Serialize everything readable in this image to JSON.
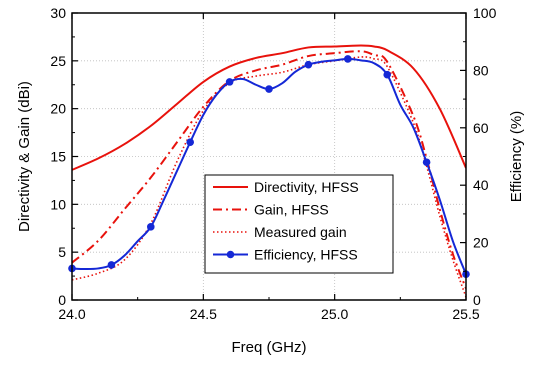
{
  "chart_data": {
    "type": "line",
    "title": "",
    "xlabel": "Freq (GHz)",
    "ylabel": "Directivity & Gain (dBi)",
    "y2label": "Efficiency (%)",
    "xlim": [
      24.0,
      25.5
    ],
    "ylim": [
      0,
      30
    ],
    "y2lim": [
      0,
      100
    ],
    "xticks": [
      "24.0",
      "24.5",
      "25.0",
      "25.5"
    ],
    "yticks": [
      "0",
      "5",
      "10",
      "15",
      "20",
      "25",
      "30"
    ],
    "y2ticks": [
      "0",
      "20",
      "40",
      "60",
      "80",
      "100"
    ],
    "grid": true,
    "legend_position": "center-right",
    "series": [
      {
        "name": "Directivity, HFSS",
        "axis": "left",
        "color": "#e8120c",
        "dash": "solid",
        "x": [
          24.0,
          24.1,
          24.2,
          24.3,
          24.4,
          24.5,
          24.6,
          24.7,
          24.8,
          24.9,
          25.0,
          25.1,
          25.15,
          25.2,
          25.3,
          25.4,
          25.5
        ],
        "y": [
          13.6,
          14.8,
          16.3,
          18.2,
          20.5,
          22.8,
          24.4,
          25.3,
          25.8,
          26.4,
          26.5,
          26.6,
          26.5,
          26.1,
          24.2,
          20.0,
          13.8
        ]
      },
      {
        "name": "Gain, HFSS",
        "axis": "left",
        "color": "#e8120c",
        "dash": "dashdot",
        "x": [
          24.0,
          24.1,
          24.2,
          24.3,
          24.4,
          24.5,
          24.6,
          24.7,
          24.8,
          24.9,
          25.0,
          25.1,
          25.15,
          25.2,
          25.3,
          25.35,
          25.4,
          25.45,
          25.5
        ],
        "y": [
          3.9,
          6.2,
          9.5,
          12.8,
          16.5,
          20.2,
          22.9,
          24.0,
          24.6,
          25.5,
          25.8,
          26.0,
          25.6,
          24.9,
          19.2,
          14.8,
          9.5,
          4.8,
          1.2
        ]
      },
      {
        "name": "Measured gain",
        "axis": "left",
        "color": "#e8120c",
        "dash": "dotted",
        "x": [
          24.0,
          24.1,
          24.2,
          24.3,
          24.4,
          24.5,
          24.6,
          24.7,
          24.8,
          24.9,
          25.0,
          25.1,
          25.15,
          25.2,
          25.3,
          25.35,
          25.4,
          25.45,
          25.5
        ],
        "y": [
          2.1,
          2.8,
          4.2,
          8.0,
          14.5,
          19.8,
          22.7,
          23.4,
          23.8,
          24.6,
          25.0,
          25.4,
          25.2,
          24.4,
          18.5,
          14.0,
          8.8,
          4.2,
          0.3
        ]
      },
      {
        "name": "Efficiency, HFSS",
        "axis": "right",
        "color": "#1528d6",
        "dash": "solid",
        "marker": "circle",
        "x": [
          24.0,
          24.05,
          24.1,
          24.15,
          24.2,
          24.25,
          24.3,
          24.35,
          24.4,
          24.45,
          24.5,
          24.55,
          24.6,
          24.65,
          24.7,
          24.75,
          24.8,
          24.85,
          24.9,
          24.95,
          25.0,
          25.05,
          25.1,
          25.15,
          25.2,
          25.25,
          25.3,
          25.35,
          25.4,
          25.45,
          25.5
        ],
        "y": [
          11.0,
          10.8,
          11.0,
          12.2,
          15.5,
          20.5,
          25.5,
          35.0,
          45.0,
          55.0,
          64.5,
          71.5,
          76.0,
          77.0,
          75.0,
          73.5,
          75.5,
          79.5,
          82.0,
          83.0,
          83.5,
          84.0,
          83.5,
          82.5,
          78.5,
          68.0,
          60.0,
          48.0,
          35.0,
          20.5,
          9.0
        ]
      }
    ]
  }
}
